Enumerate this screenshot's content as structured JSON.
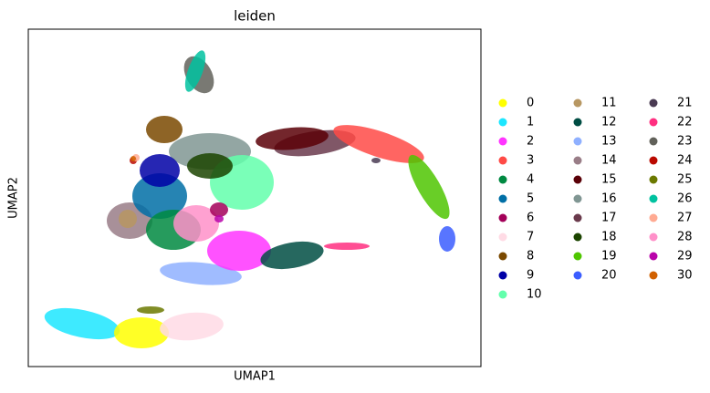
{
  "chart_data": {
    "type": "scatter",
    "title": "leiden",
    "xlabel": "UMAP1",
    "ylabel": "UMAP2",
    "series": [
      {
        "name": "0",
        "color": "#FFFF00"
      },
      {
        "name": "1",
        "color": "#1CE6FF"
      },
      {
        "name": "2",
        "color": "#FF34FF"
      },
      {
        "name": "3",
        "color": "#FF4A46"
      },
      {
        "name": "4",
        "color": "#008941"
      },
      {
        "name": "5",
        "color": "#006FA6"
      },
      {
        "name": "6",
        "color": "#A30059"
      },
      {
        "name": "7",
        "color": "#FFDBE5"
      },
      {
        "name": "8",
        "color": "#7A4900"
      },
      {
        "name": "9",
        "color": "#0000A6"
      },
      {
        "name": "10",
        "color": "#63FFAC"
      },
      {
        "name": "11",
        "color": "#B79762"
      },
      {
        "name": "12",
        "color": "#004D43"
      },
      {
        "name": "13",
        "color": "#8FB0FF"
      },
      {
        "name": "14",
        "color": "#997D87"
      },
      {
        "name": "15",
        "color": "#5A0007"
      },
      {
        "name": "16",
        "color": "#809693"
      },
      {
        "name": "17",
        "color": "#6A3A4C"
      },
      {
        "name": "18",
        "color": "#1B4400"
      },
      {
        "name": "19",
        "color": "#4FC601"
      },
      {
        "name": "20",
        "color": "#3B5DFF"
      },
      {
        "name": "21",
        "color": "#4A3B53"
      },
      {
        "name": "22",
        "color": "#FF2F80"
      },
      {
        "name": "23",
        "color": "#61615A"
      },
      {
        "name": "24",
        "color": "#BA0900"
      },
      {
        "name": "25",
        "color": "#6B7900"
      },
      {
        "name": "26",
        "color": "#00C2A0"
      },
      {
        "name": "27",
        "color": "#FFAA92"
      },
      {
        "name": "28",
        "color": "#FF90C9"
      },
      {
        "name": "29",
        "color": "#B903AA"
      },
      {
        "name": "30",
        "color": "#D16100"
      }
    ],
    "legend": "right"
  }
}
